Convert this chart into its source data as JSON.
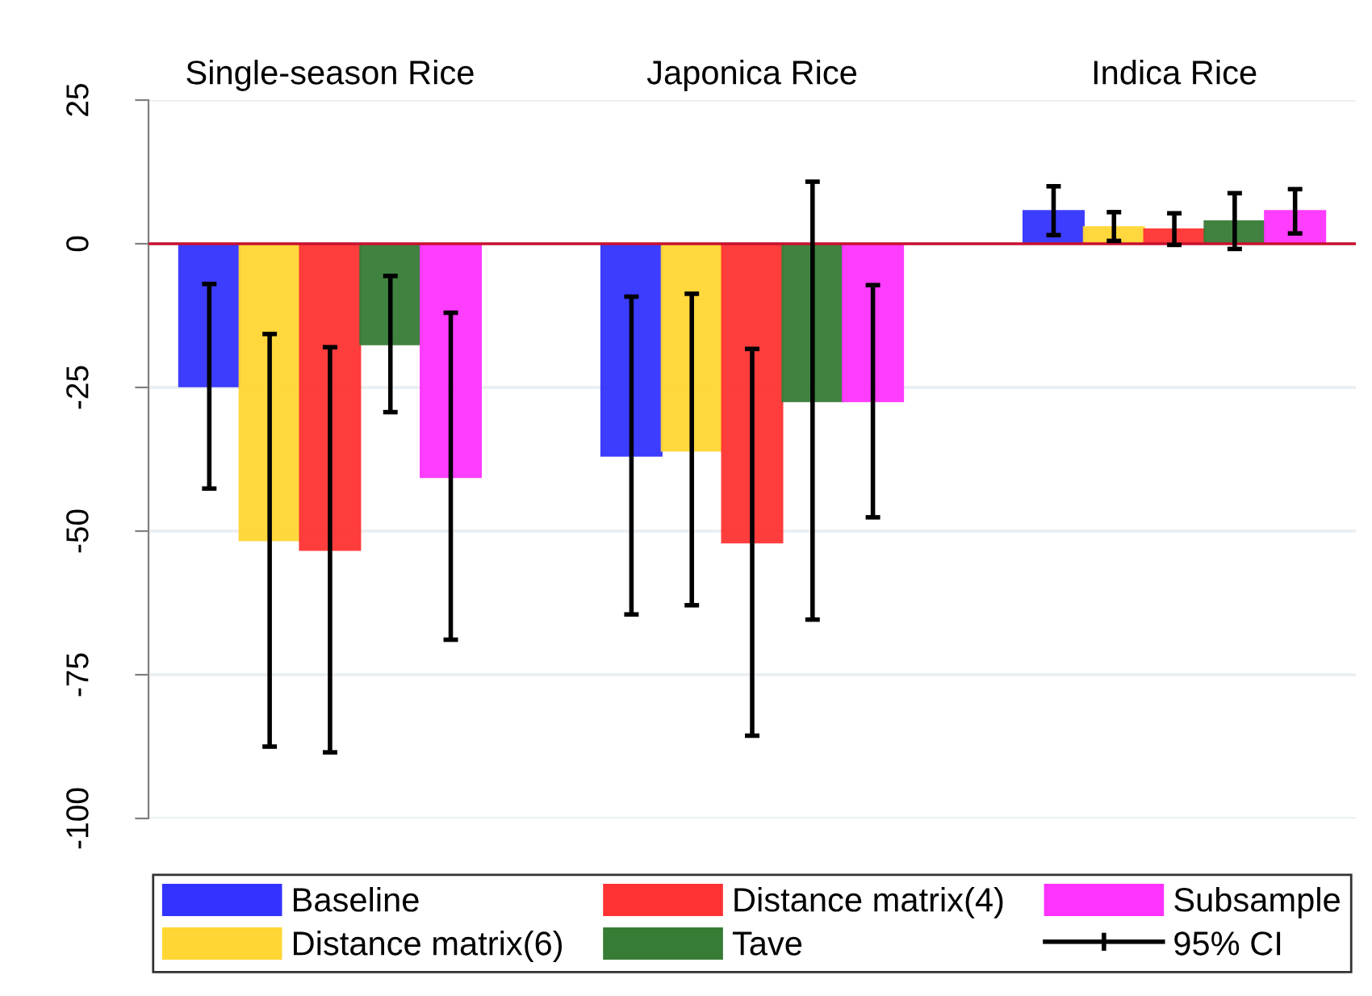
{
  "chart_data": {
    "type": "bar",
    "categories": [
      "Single-season Rice",
      "Japonica Rice",
      "Indica Rice"
    ],
    "series": [
      {
        "name": "Baseline",
        "color": "#3333ff",
        "values": [
          -24.8,
          -36.9,
          5.7
        ],
        "errors": [
          [
            -42.6,
            -7.0
          ],
          [
            -64.5,
            -9.2
          ],
          [
            1.5,
            10.0
          ]
        ]
      },
      {
        "name": "Distance matrix(6)",
        "color": "#ffd633",
        "values": [
          -51.6,
          -36.0,
          2.9
        ],
        "errors": [
          [
            -87.5,
            -15.7
          ],
          [
            -62.9,
            -8.7
          ],
          [
            0.5,
            5.5
          ]
        ]
      },
      {
        "name": "Distance matrix(4)",
        "color": "#ff3333",
        "values": [
          -53.3,
          -52.0,
          2.5
        ],
        "errors": [
          [
            -88.5,
            -18.0
          ],
          [
            -85.6,
            -18.3
          ],
          [
            -0.2,
            5.3
          ]
        ]
      },
      {
        "name": "Tave",
        "color": "#367c35",
        "values": [
          -17.5,
          -27.4,
          3.9
        ],
        "errors": [
          [
            -29.3,
            -5.6
          ],
          [
            -65.4,
            10.8
          ],
          [
            -0.9,
            8.8
          ]
        ]
      },
      {
        "name": "Subsample",
        "color": "#ff33ff",
        "values": [
          -40.6,
          -27.4,
          5.7
        ],
        "errors": [
          [
            -68.9,
            -12.0
          ],
          [
            -47.6,
            -7.2
          ],
          [
            1.8,
            9.5
          ]
        ]
      }
    ],
    "ylim": [
      -100,
      25
    ],
    "yticks": [
      -100,
      -75,
      -50,
      -25,
      0,
      25
    ],
    "grid": "y",
    "ref_lines": [
      {
        "axis": "y",
        "value": 0,
        "color": "#c8102e"
      }
    ],
    "legend": "bottom",
    "annotations": [
      "95% CI"
    ]
  }
}
